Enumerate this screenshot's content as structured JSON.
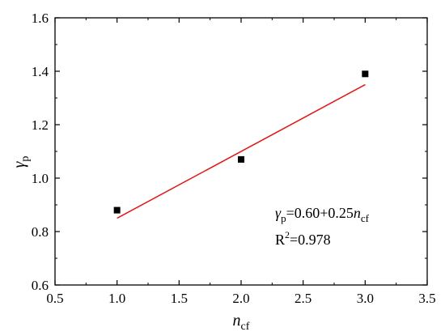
{
  "chart_data": {
    "type": "scatter",
    "xlabel": {
      "main": "n",
      "sub": "cf"
    },
    "ylabel": {
      "main": "γ",
      "sub": "p"
    },
    "xlim": [
      0.5,
      3.5
    ],
    "ylim": [
      0.6,
      1.6
    ],
    "xticks": [
      "0.5",
      "1.0",
      "1.5",
      "2.0",
      "2.5",
      "3.0",
      "3.5"
    ],
    "yticks": [
      "0.6",
      "0.8",
      "1.0",
      "1.2",
      "1.4",
      "1.6"
    ],
    "grid": false,
    "points": [
      {
        "x": 1.0,
        "y": 0.88
      },
      {
        "x": 2.0,
        "y": 1.07
      },
      {
        "x": 3.0,
        "y": 1.39
      }
    ],
    "fit_line": {
      "intercept": 0.6,
      "slope": 0.25,
      "x_range": [
        1.0,
        3.0
      ],
      "color": "#ff0000"
    },
    "annotations": {
      "equation": {
        "lhs_main": "γ",
        "lhs_sub": "p",
        "body": "=0.60+0.25",
        "var_main": "n",
        "var_sub": "cf"
      },
      "r2": {
        "prefix": "R",
        "sup": "2",
        "value": "=0.978"
      }
    }
  }
}
